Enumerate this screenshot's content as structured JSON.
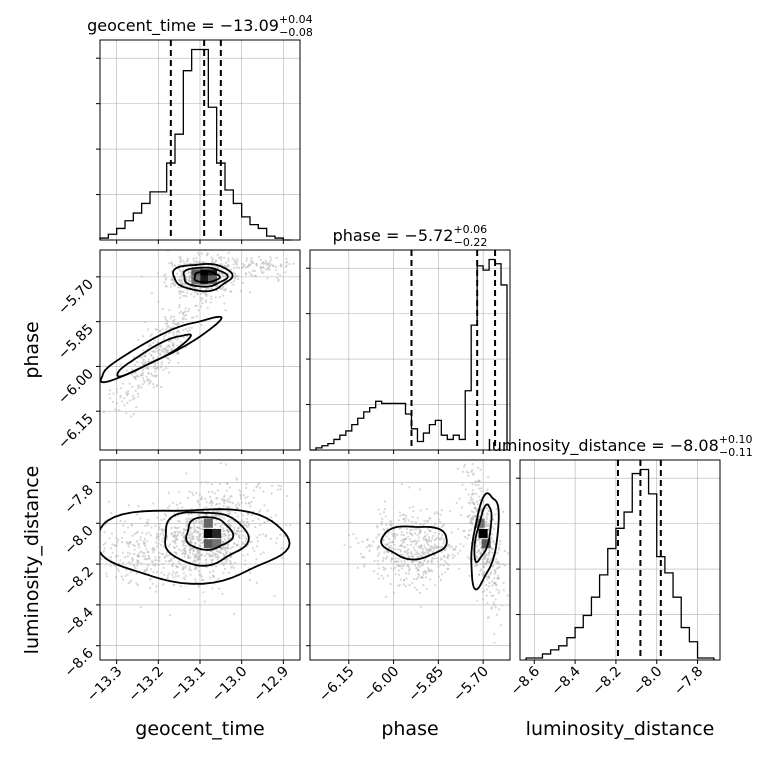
{
  "chart_data": {
    "type": "corner",
    "parameters": [
      "geocent_time",
      "phase",
      "luminosity_distance"
    ],
    "titles": {
      "geocent_time": {
        "prefix": "geocent_time = ",
        "value": "−13.09",
        "plus": "+0.04",
        "minus": "−0.08"
      },
      "phase": {
        "prefix": "phase = ",
        "value": "−5.72",
        "plus": "+0.06",
        "minus": "−0.22"
      },
      "luminosity_distance": {
        "prefix": "luminosity_distance = ",
        "value": "−8.08",
        "plus": "+0.10",
        "minus": "−0.11"
      }
    },
    "axis_labels": {
      "geocent_time": "geocent_time",
      "phase": "phase",
      "luminosity_distance": "luminosity_distance"
    },
    "ranges": {
      "geocent_time": [
        -13.34,
        -12.86
      ],
      "phase": [
        -6.28,
        -5.61
      ],
      "luminosity_distance": [
        -8.67,
        -7.69
      ]
    },
    "ticks": {
      "geocent_time": [
        {
          "v": -13.3,
          "label": "−13.3"
        },
        {
          "v": -13.2,
          "label": "−13.2"
        },
        {
          "v": -13.1,
          "label": "−13.1"
        },
        {
          "v": -13.0,
          "label": "−13.0"
        },
        {
          "v": -12.9,
          "label": "−12.9"
        }
      ],
      "phase": [
        {
          "v": -6.15,
          "label": "−6.15"
        },
        {
          "v": -6.0,
          "label": "−6.00"
        },
        {
          "v": -5.85,
          "label": "−5.85"
        },
        {
          "v": -5.7,
          "label": "−5.70"
        }
      ],
      "luminosity_distance": [
        {
          "v": -8.6,
          "label": "−8.6"
        },
        {
          "v": -8.4,
          "label": "−8.4"
        },
        {
          "v": -8.2,
          "label": "−8.2"
        },
        {
          "v": -8.0,
          "label": "−8.0"
        },
        {
          "v": -7.8,
          "label": "−7.8"
        }
      ]
    },
    "quantiles": {
      "geocent_time": [
        -13.17,
        -13.09,
        -13.05
      ],
      "phase": [
        -5.94,
        -5.72,
        -5.66
      ],
      "luminosity_distance": [
        -8.19,
        -8.08,
        -7.98
      ]
    },
    "histograms": {
      "geocent_time": {
        "edges": [
          -13.34,
          -13.32,
          -13.3,
          -13.28,
          -13.26,
          -13.24,
          -13.22,
          -13.2,
          -13.18,
          -13.16,
          -13.14,
          -13.12,
          -13.1,
          -13.08,
          -13.06,
          -13.04,
          -13.02,
          -13.0,
          -12.98,
          -12.96,
          -12.94,
          -12.92,
          -12.9,
          -12.88
        ],
        "counts": [
          1,
          3,
          6,
          10,
          14,
          19,
          25,
          25,
          40,
          55,
          88,
          99,
          99,
          69,
          40,
          26,
          19,
          12,
          8,
          6,
          2,
          1,
          0
        ]
      },
      "phase": {
        "edges": [
          -6.28,
          -6.26,
          -6.24,
          -6.22,
          -6.2,
          -6.18,
          -6.16,
          -6.14,
          -6.12,
          -6.1,
          -6.08,
          -6.06,
          -6.04,
          -6.02,
          -6.0,
          -5.98,
          -5.96,
          -5.94,
          -5.92,
          -5.9,
          -5.88,
          -5.86,
          -5.84,
          -5.82,
          -5.8,
          -5.78,
          -5.76,
          -5.74,
          -5.72,
          -5.7,
          -5.68,
          -5.66,
          -5.64,
          -5.62
        ],
        "counts": [
          0,
          1,
          2,
          3,
          5,
          7,
          9,
          12,
          15,
          18,
          20,
          23,
          22,
          22,
          22,
          22,
          17,
          10,
          4,
          8,
          12,
          14,
          7,
          5,
          7,
          5,
          28,
          59,
          87,
          85,
          90,
          88,
          78
        ]
      },
      "luminosity_distance": {
        "edges": [
          -8.64,
          -8.6,
          -8.56,
          -8.52,
          -8.48,
          -8.44,
          -8.4,
          -8.36,
          -8.32,
          -8.28,
          -8.24,
          -8.2,
          -8.16,
          -8.12,
          -8.08,
          -8.04,
          -8.0,
          -7.96,
          -7.92,
          -7.88,
          -7.84,
          -7.8,
          -7.76,
          -7.72
        ],
        "counts": [
          1,
          1,
          3,
          5,
          7,
          11,
          16,
          22,
          31,
          42,
          55,
          65,
          73,
          92,
          94,
          82,
          51,
          43,
          31,
          16,
          9,
          1,
          1
        ]
      }
    },
    "pairs": [
      {
        "x": "geocent_time",
        "y": "phase",
        "blobs": [
          {
            "cx": -13.1,
            "cy": -5.7,
            "sx": 0.04,
            "sy": 0.035,
            "rho": 0.1,
            "n": 420
          },
          {
            "cx": -13.2,
            "cy": -5.95,
            "sx": 0.055,
            "sy": 0.1,
            "rho": 0.85,
            "n": 320
          },
          {
            "cx": -12.97,
            "cy": -5.67,
            "sx": 0.05,
            "sy": 0.02,
            "rho": 0.0,
            "n": 110
          }
        ],
        "contours": [
          {
            "cx": -13.095,
            "cy": -5.7,
            "rx": 0.07,
            "ry": 0.045,
            "rot": 0
          },
          {
            "cx": -13.09,
            "cy": -5.7,
            "rx": 0.052,
            "ry": 0.032,
            "rot": 0
          },
          {
            "cx": -13.085,
            "cy": -5.7,
            "rx": 0.03,
            "ry": 0.018,
            "rot": 0
          },
          {
            "cx": -13.2,
            "cy": -5.94,
            "rx": 0.16,
            "ry": 0.035,
            "rot": 0.47
          },
          {
            "cx": -13.21,
            "cy": -5.96,
            "rx": 0.1,
            "ry": 0.022,
            "rot": 0.5
          }
        ],
        "pixels": [
          {
            "x": -13.09,
            "y": -5.69,
            "shade": 0.0
          },
          {
            "x": -13.07,
            "y": -5.69,
            "shade": 0.1
          },
          {
            "x": -13.09,
            "y": -5.71,
            "shade": 0.1
          },
          {
            "x": -13.11,
            "y": -5.69,
            "shade": 0.35
          },
          {
            "x": -13.11,
            "y": -5.71,
            "shade": 0.45
          },
          {
            "x": -13.07,
            "y": -5.71,
            "shade": 0.4
          }
        ]
      },
      {
        "x": "geocent_time",
        "y": "luminosity_distance",
        "blobs": [
          {
            "cx": -13.08,
            "cy": -8.07,
            "sx": 0.05,
            "sy": 0.11,
            "rho": 0.1,
            "n": 520
          },
          {
            "cx": -13.2,
            "cy": -8.12,
            "sx": 0.08,
            "sy": 0.09,
            "rho": 0.0,
            "n": 380
          },
          {
            "cx": -13.0,
            "cy": -8.0,
            "sx": 0.07,
            "sy": 0.12,
            "rho": 0.0,
            "n": 200
          }
        ],
        "contours": [
          {
            "cx": -13.12,
            "cy": -8.1,
            "rx": 0.23,
            "ry": 0.18,
            "rot": 0
          },
          {
            "cx": -13.09,
            "cy": -8.07,
            "rx": 0.1,
            "ry": 0.13,
            "rot": 0
          },
          {
            "cx": -13.08,
            "cy": -8.05,
            "rx": 0.055,
            "ry": 0.08,
            "rot": 0
          }
        ],
        "pixels": [
          {
            "x": -13.08,
            "y": -8.05,
            "shade": 0.0
          },
          {
            "x": -13.06,
            "y": -8.05,
            "shade": 0.15
          },
          {
            "x": -13.08,
            "y": -8.1,
            "shade": 0.35
          },
          {
            "x": -13.08,
            "y": -8.0,
            "shade": 0.4
          },
          {
            "x": -13.06,
            "y": -8.1,
            "shade": 0.45
          }
        ]
      },
      {
        "x": "phase",
        "y": "luminosity_distance",
        "blobs": [
          {
            "cx": -5.93,
            "cy": -8.12,
            "sx": 0.08,
            "sy": 0.09,
            "rho": 0.0,
            "n": 500
          },
          {
            "cx": -5.7,
            "cy": -8.08,
            "sx": 0.03,
            "sy": 0.16,
            "rho": -0.6,
            "n": 420
          }
        ],
        "contours": [
          {
            "cx": -5.93,
            "cy": -8.09,
            "rx": 0.11,
            "ry": 0.08,
            "rot": 0
          },
          {
            "cx": -5.695,
            "cy": -8.08,
            "rx": 0.04,
            "ry": 0.23,
            "rot": -0.15
          },
          {
            "cx": -5.7,
            "cy": -8.05,
            "rx": 0.022,
            "ry": 0.14,
            "rot": -0.2
          }
        ],
        "pixels": [
          {
            "x": -5.7,
            "y": -8.05,
            "shade": 0.0
          },
          {
            "x": -5.69,
            "y": -8.1,
            "shade": 0.35
          },
          {
            "x": -5.71,
            "y": -8.0,
            "shade": 0.45
          }
        ]
      }
    ],
    "colors": {
      "line": "#000000",
      "scatter": "#b4b4b4",
      "grid": "#b0b0b0",
      "axes": "#000000"
    }
  }
}
